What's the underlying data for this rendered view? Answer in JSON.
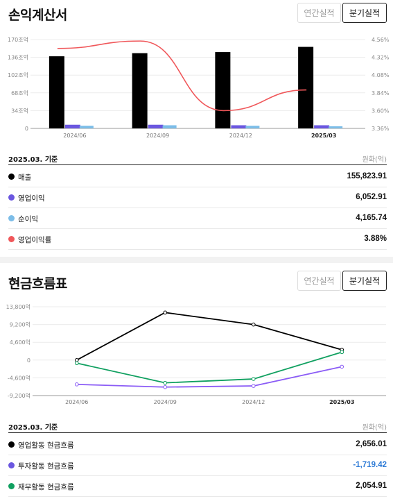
{
  "income": {
    "title": "손익계산서",
    "tabs": [
      {
        "label": "연간실적",
        "active": false
      },
      {
        "label": "분기실적",
        "active": true
      }
    ],
    "chart_data": {
      "type": "bar",
      "categories": [
        "2024/06",
        "2024/09",
        "2024/12",
        "2025/03"
      ],
      "left_ticks": [
        "170조억",
        "136조억",
        "102조억",
        "68조억",
        "34조억",
        "0"
      ],
      "right_ticks": [
        "4.56%",
        "4.32%",
        "4.08%",
        "3.84%",
        "3.60%",
        "3.36%"
      ],
      "ylim": [
        0,
        170
      ],
      "y2lim": [
        3.36,
        4.56
      ],
      "series": [
        {
          "name": "매출",
          "type": "bar",
          "color": "#000000",
          "values": [
            138,
            144,
            146,
            156
          ]
        },
        {
          "name": "영업이익",
          "type": "bar",
          "color": "#6b57e0",
          "values": [
            7,
            7,
            6,
            6
          ]
        },
        {
          "name": "순이익",
          "type": "bar",
          "color": "#7cbde8",
          "values": [
            5,
            6,
            5,
            4
          ]
        },
        {
          "name": "영업이익률",
          "type": "line",
          "axis": "right",
          "color": "#f0575a",
          "values": [
            4.44,
            4.54,
            3.6,
            3.88
          ]
        }
      ]
    },
    "summary": {
      "as_of": "2025.03. 기준",
      "unit": "원화(억)",
      "rows": [
        {
          "label": "매출",
          "value": "155,823.91",
          "color": "#000000",
          "negative": false
        },
        {
          "label": "영업이익",
          "value": "6,052.91",
          "color": "#6b57e0",
          "negative": false
        },
        {
          "label": "순이익",
          "value": "4,165.74",
          "color": "#7cbde8",
          "negative": false
        },
        {
          "label": "영업이익률",
          "value": "3.88%",
          "color": "#f0575a",
          "negative": false
        }
      ]
    }
  },
  "cashflow": {
    "title": "현금흐름표",
    "tabs": [
      {
        "label": "연간실적",
        "active": false
      },
      {
        "label": "분기실적",
        "active": true
      }
    ],
    "chart_data": {
      "type": "line",
      "categories": [
        "2024/06",
        "2024/09",
        "2024/12",
        "2025/03"
      ],
      "y_ticks": [
        "13,800억",
        "9,200억",
        "4,600억",
        "0",
        "-4,600억",
        "-9,200억"
      ],
      "ylim": [
        -9200,
        13800
      ],
      "series": [
        {
          "name": "영업활동 현금흐름",
          "color": "#000000",
          "values": [
            0,
            12300,
            9200,
            2656
          ]
        },
        {
          "name": "투자활동 현금흐름",
          "color": "#8b5cf6",
          "values": [
            -6300,
            -7000,
            -6700,
            -1719
          ]
        },
        {
          "name": "재무활동 현금흐름",
          "color": "#10a060",
          "values": [
            -800,
            -5900,
            -4900,
            2055
          ]
        }
      ]
    },
    "summary": {
      "as_of": "2025.03. 기준",
      "unit": "원화(억)",
      "rows": [
        {
          "label": "영업활동 현금흐름",
          "value": "2,656.01",
          "color": "#000000",
          "negative": false
        },
        {
          "label": "투자활동 현금흐름",
          "value": "-1,719.42",
          "color": "#6b57e0",
          "negative": true
        },
        {
          "label": "재무활동 현금흐름",
          "value": "2,054.91",
          "color": "#10a060",
          "negative": false
        }
      ]
    }
  }
}
